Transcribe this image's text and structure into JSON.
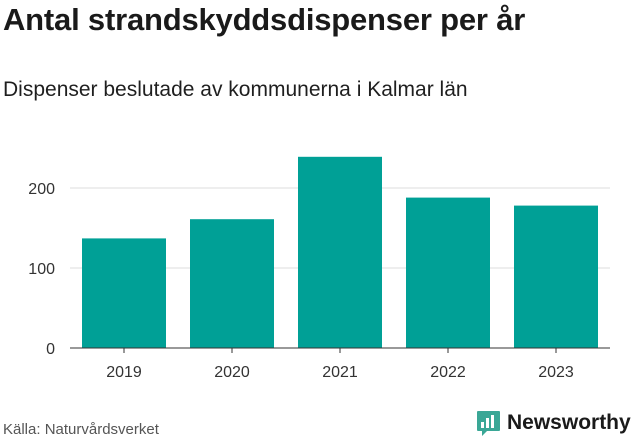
{
  "title": "Antal strandskyddsdispenser per år",
  "subtitle": "Dispenser beslutade av kommunerna i Kalmar län",
  "source": "Källa: Naturvårdsverket",
  "brand": {
    "name": "Newsworthy",
    "icon": "newsworthy-logo-icon",
    "color": "#3aa796"
  },
  "colors": {
    "bar": "#00a096",
    "grid": "#dddddd",
    "axis": "#333333",
    "tick_text": "#333333"
  },
  "chart_data": {
    "type": "bar",
    "title": "Antal strandskyddsdispenser per år",
    "subtitle": "Dispenser beslutade av kommunerna i Kalmar län",
    "categories": [
      "2019",
      "2020",
      "2021",
      "2022",
      "2023"
    ],
    "values": [
      137,
      161,
      239,
      188,
      178
    ],
    "xlabel": "",
    "ylabel": "",
    "ylim": [
      0,
      250
    ],
    "yticks": [
      0,
      100,
      200
    ],
    "grid": true,
    "legend": "none"
  }
}
